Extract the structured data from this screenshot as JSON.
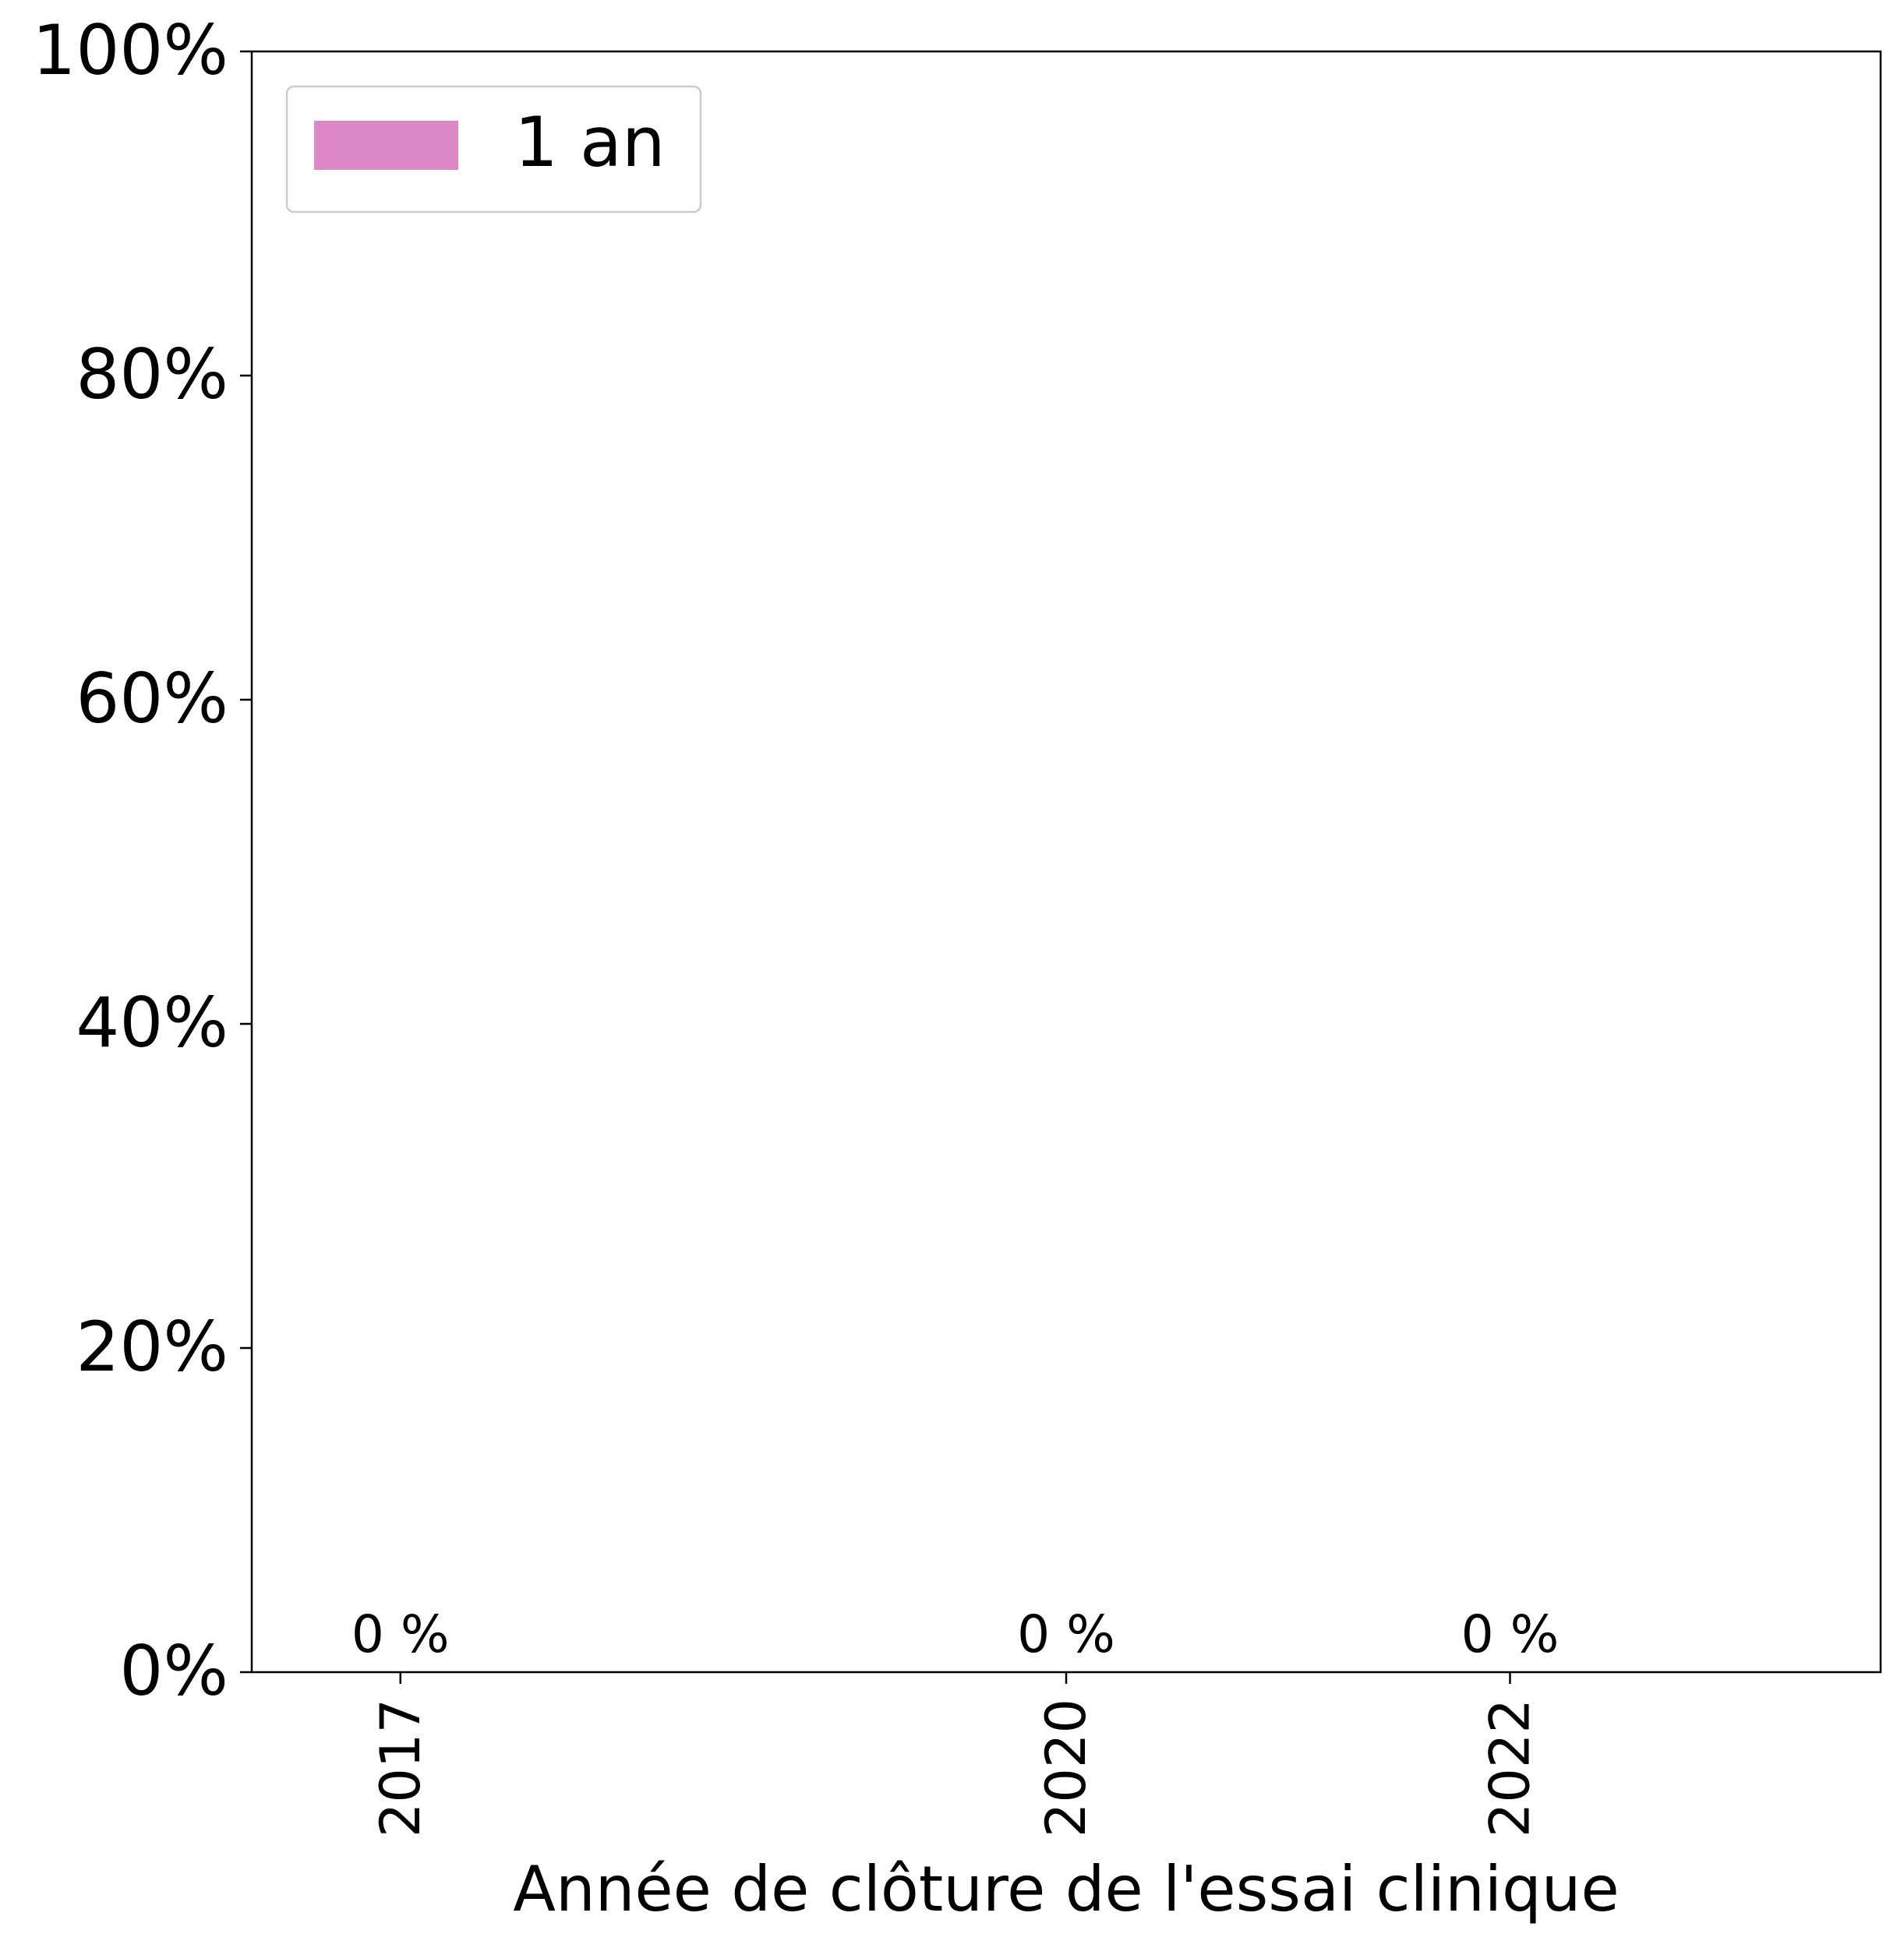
{
  "chart_data": {
    "type": "bar",
    "title": "",
    "xlabel": "Année de clôture de l'essai clinique",
    "ylabel": "",
    "x_axis": {
      "ticks": [
        2017,
        2020,
        2022
      ],
      "tick_labels": [
        "2017",
        "2020",
        "2022"
      ],
      "range": [
        2016.33,
        2023.67
      ]
    },
    "y_axis": {
      "ticks": [
        0,
        20,
        40,
        60,
        80,
        100
      ],
      "tick_labels": [
        "0%",
        "20%",
        "40%",
        "60%",
        "80%",
        "100%"
      ],
      "ylim": [
        0,
        100
      ]
    },
    "series": [
      {
        "name": "1 an",
        "color": "#dd88c8",
        "points": [
          {
            "x": 2017,
            "y": 0,
            "label": "0 %"
          },
          {
            "x": 2020,
            "y": 0,
            "label": "0 %"
          },
          {
            "x": 2022,
            "y": 0,
            "label": "0 %"
          }
        ]
      }
    ],
    "legend": {
      "position": "top-left"
    },
    "grid": false
  }
}
